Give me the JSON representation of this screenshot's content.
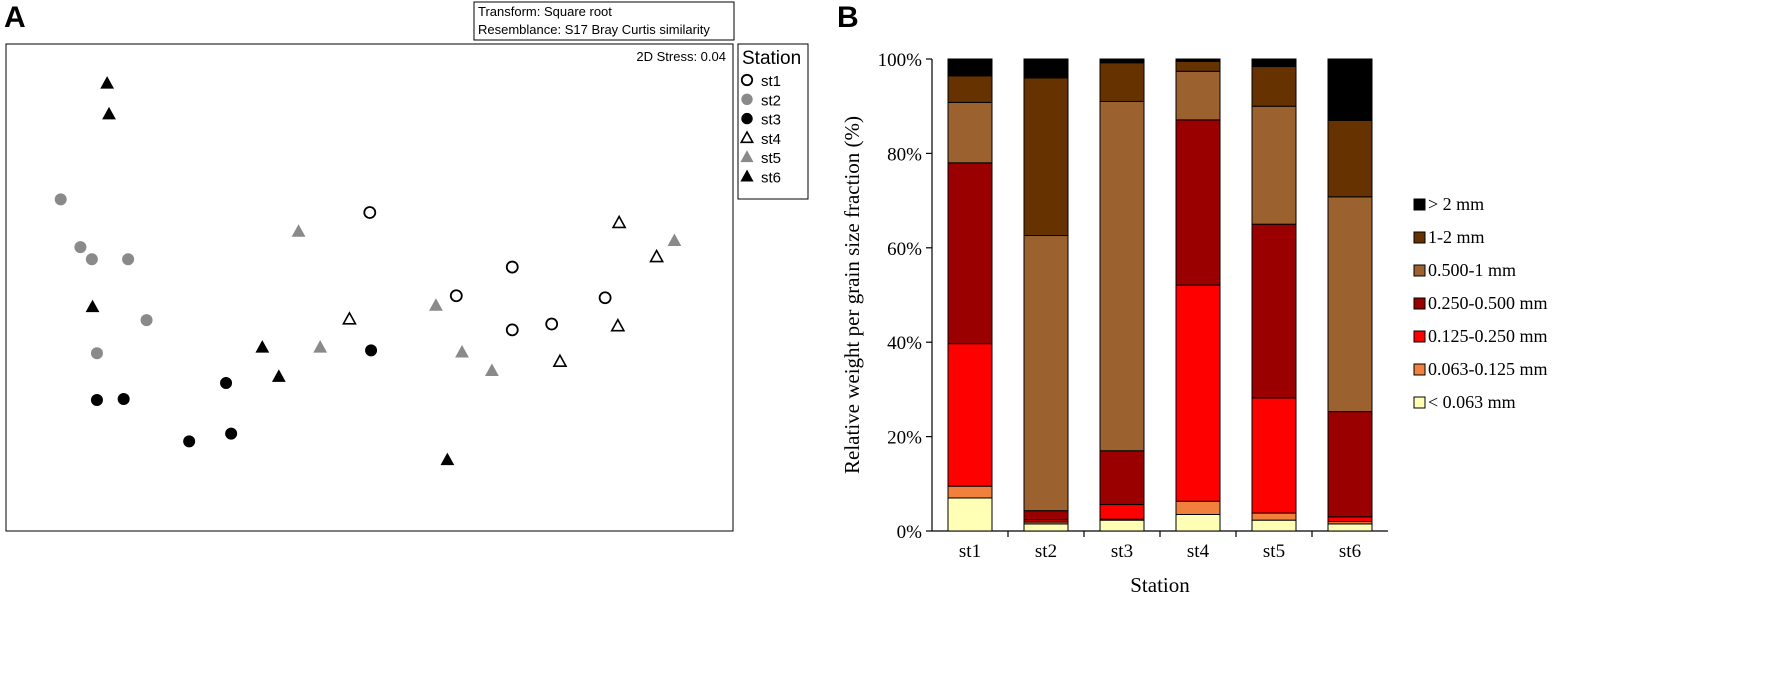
{
  "chart_data": [
    {
      "panel": "A",
      "type": "scatter",
      "annotations": {
        "transform": "Transform: Square root",
        "resemblance": "Resemblance: S17 Bray Curtis similarity",
        "stress": "2D Stress: 0.04"
      },
      "legend": {
        "title": "Station",
        "placement": "right",
        "entries": [
          {
            "label": "st1",
            "marker": "circle-open"
          },
          {
            "label": "st2",
            "marker": "circle-gray"
          },
          {
            "label": "st3",
            "marker": "circle-black"
          },
          {
            "label": "st4",
            "marker": "triangle-open"
          },
          {
            "label": "st5",
            "marker": "triangle-gray"
          },
          {
            "label": "st6",
            "marker": "triangle-black"
          }
        ]
      },
      "points": [
        {
          "station": "st1",
          "x": 0.572,
          "y": 0.654
        },
        {
          "station": "st1",
          "x": 0.796,
          "y": 0.542
        },
        {
          "station": "st1",
          "x": 0.708,
          "y": 0.483
        },
        {
          "station": "st1",
          "x": 0.942,
          "y": 0.479
        },
        {
          "station": "st1",
          "x": 0.796,
          "y": 0.413
        },
        {
          "station": "st1",
          "x": 0.858,
          "y": 0.425
        },
        {
          "station": "st2",
          "x": 0.086,
          "y": 0.681
        },
        {
          "station": "st2",
          "x": 0.117,
          "y": 0.583
        },
        {
          "station": "st2",
          "x": 0.135,
          "y": 0.558
        },
        {
          "station": "st2",
          "x": 0.192,
          "y": 0.558
        },
        {
          "station": "st2",
          "x": 0.221,
          "y": 0.433
        },
        {
          "station": "st2",
          "x": 0.143,
          "y": 0.365
        },
        {
          "station": "st3",
          "x": 0.574,
          "y": 0.371
        },
        {
          "station": "st3",
          "x": 0.346,
          "y": 0.304
        },
        {
          "station": "st3",
          "x": 0.143,
          "y": 0.269
        },
        {
          "station": "st3",
          "x": 0.185,
          "y": 0.271
        },
        {
          "station": "st3",
          "x": 0.288,
          "y": 0.184
        },
        {
          "station": "st3",
          "x": 0.354,
          "y": 0.2
        },
        {
          "station": "st4",
          "x": 0.964,
          "y": 0.633
        },
        {
          "station": "st4",
          "x": 1.023,
          "y": 0.563
        },
        {
          "station": "st4",
          "x": 0.54,
          "y": 0.435
        },
        {
          "station": "st4",
          "x": 0.962,
          "y": 0.421
        },
        {
          "station": "st4",
          "x": 0.871,
          "y": 0.348
        },
        {
          "station": "st5",
          "x": 1.051,
          "y": 0.596
        },
        {
          "station": "st5",
          "x": 0.46,
          "y": 0.615
        },
        {
          "station": "st5",
          "x": 0.676,
          "y": 0.463
        },
        {
          "station": "st5",
          "x": 0.494,
          "y": 0.377
        },
        {
          "station": "st5",
          "x": 0.717,
          "y": 0.367
        },
        {
          "station": "st5",
          "x": 0.764,
          "y": 0.329
        },
        {
          "station": "st6",
          "x": 0.159,
          "y": 0.919
        },
        {
          "station": "st6",
          "x": 0.162,
          "y": 0.856
        },
        {
          "station": "st6",
          "x": 0.136,
          "y": 0.46
        },
        {
          "station": "st6",
          "x": 0.403,
          "y": 0.377
        },
        {
          "station": "st6",
          "x": 0.429,
          "y": 0.317
        },
        {
          "station": "st6",
          "x": 0.694,
          "y": 0.146
        }
      ],
      "style": {
        "gray": "#8a8a8a",
        "black": "#000000"
      }
    },
    {
      "panel": "B",
      "type": "bar",
      "stacked": true,
      "xlabel": "Station",
      "ylabel": "Relative weight per grain size fraction (%)",
      "categories": [
        "st1",
        "st2",
        "st3",
        "st4",
        "st5",
        "st6"
      ],
      "ylim": [
        0,
        100
      ],
      "yticks": [
        "0%",
        "20%",
        "40%",
        "60%",
        "80%",
        "100%"
      ],
      "legend_placement": "right",
      "series": [
        {
          "name": "< 0.063 mm",
          "color": "#ffffb5",
          "values": [
            7.0,
            1.5,
            2.3,
            3.5,
            2.3,
            1.5
          ]
        },
        {
          "name": "0.063-0.125 mm",
          "color": "#f0803c",
          "values": [
            2.5,
            0.4,
            0.2,
            2.8,
            1.5,
            0.5
          ]
        },
        {
          "name": "0.125-0.250 mm",
          "color": "#ff0000",
          "values": [
            30.2,
            0.5,
            3.1,
            45.8,
            24.4,
            1.0
          ]
        },
        {
          "name": "0.250-0.500 mm",
          "color": "#9b0000",
          "values": [
            38.3,
            1.9,
            11.4,
            35.0,
            36.8,
            22.3
          ]
        },
        {
          "name": "0.500-1 mm",
          "color": "#9b6230",
          "values": [
            12.8,
            58.3,
            74.0,
            10.3,
            25.0,
            45.5
          ]
        },
        {
          "name": "1-2 mm",
          "color": "#663300",
          "values": [
            5.6,
            33.4,
            8.2,
            2.1,
            8.4,
            16.2
          ]
        },
        {
          "name": "> 2 mm",
          "color": "#000000",
          "values": [
            3.6,
            4.0,
            0.8,
            0.5,
            1.6,
            13.0
          ]
        }
      ]
    }
  ]
}
